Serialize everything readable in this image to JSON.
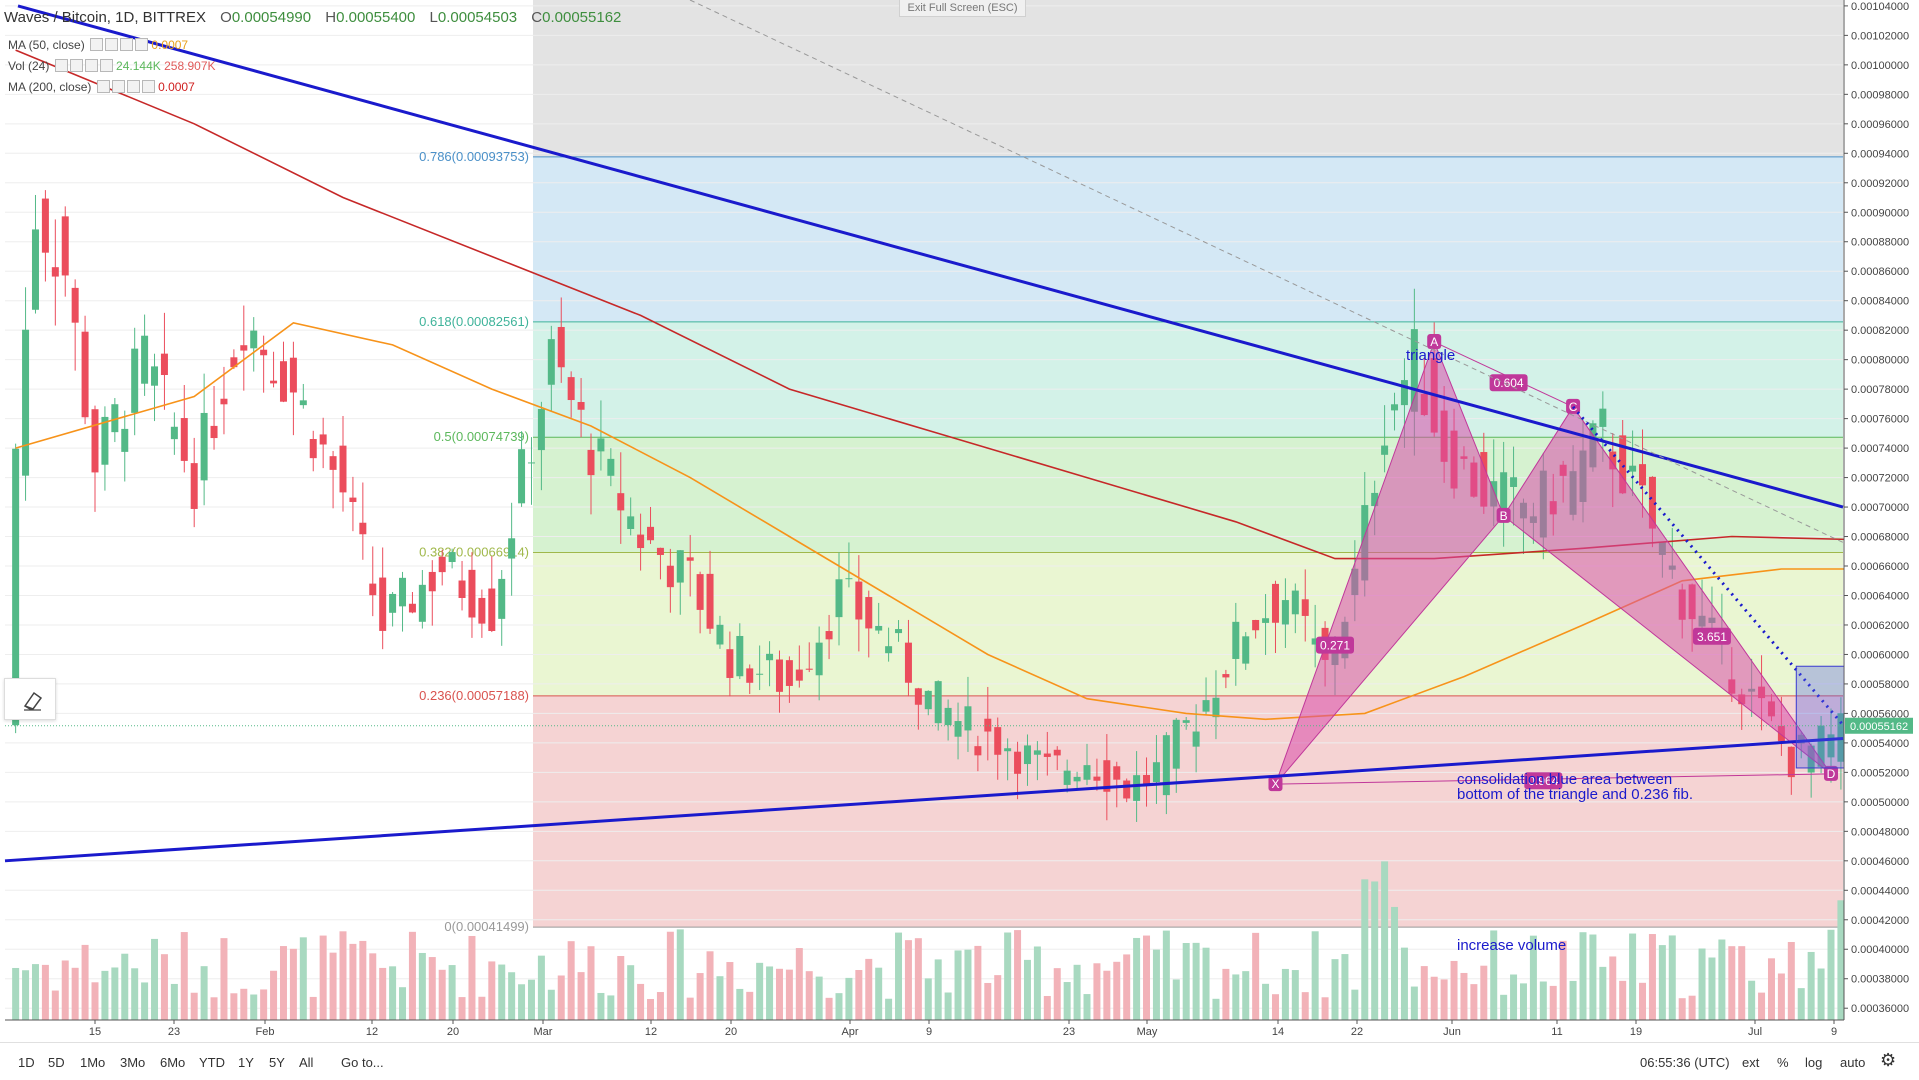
{
  "header": {
    "symbol": "Waves / Bitcoin, 1D, BITTREX",
    "open_label": "O",
    "open": "0.00054990",
    "high_label": "H",
    "high": "0.00055400",
    "low_label": "L",
    "low": "0.00054503",
    "close_label": "C",
    "close": "0.00055162"
  },
  "indicators": [
    {
      "label": "MA (50, close)",
      "value": "0.0007",
      "color": "#e8a01c"
    },
    {
      "label": "Vol (24)",
      "value": "24.144K",
      "value2": "258.907K",
      "color": "#5cb85c"
    },
    {
      "label": "MA (200, close)",
      "value": "0.0007",
      "color": "#d02020"
    }
  ],
  "exit_fullscreen": "Exit Full Screen (ESC)",
  "bottom": {
    "ranges": [
      "1D",
      "5D",
      "1Mo",
      "3Mo",
      "6Mo",
      "YTD",
      "1Y",
      "5Y",
      "All"
    ],
    "goto": "Go to...",
    "time": "06:55:36 (UTC)",
    "ext": "ext",
    "percent": "%",
    "log": "log",
    "auto": "auto"
  },
  "chart_data": {
    "type": "candlestick",
    "title": "Waves / Bitcoin, 1D, BITTREX",
    "colors": {
      "up": "#53b987",
      "down": "#eb4d5c",
      "ma50": "#f7931a",
      "ma200": "#c62828",
      "trend": "#1a1acc"
    },
    "ylim": [
      0.000352,
      0.001044
    ],
    "y_ticks": [
      "0.00104000",
      "0.00102000",
      "0.00100000",
      "0.00098000",
      "0.00096000",
      "0.00094000",
      "0.00092000",
      "0.00090000",
      "0.00088000",
      "0.00086000",
      "0.00084000",
      "0.00082000",
      "0.00080000",
      "0.00078000",
      "0.00076000",
      "0.00074000",
      "0.00072000",
      "0.00070000",
      "0.00068000",
      "0.00066000",
      "0.00064000",
      "0.00062000",
      "0.00060000",
      "0.00058000",
      "0.00056000",
      "0.00054000",
      "0.00052000",
      "0.00050000",
      "0.00048000",
      "0.00046000",
      "0.00044000",
      "0.00042000",
      "0.00040000",
      "0.00038000",
      "0.00036000"
    ],
    "last_price_label": "0.00055162",
    "x_labels": [
      "15",
      "23",
      "Feb",
      "12",
      "20",
      "Mar",
      "12",
      "20",
      "Apr",
      "9",
      "23",
      "May",
      "14",
      "22",
      "Jun",
      "11",
      "19",
      "Jul",
      "9"
    ],
    "fib_levels": [
      {
        "label": "0.786(0.00093753)",
        "value": 0.00093753
      },
      {
        "label": "0.618(0.00082561)",
        "value": 0.00082561
      },
      {
        "label": "0.5(0.00074739)",
        "value": 0.00074739
      },
      {
        "label": "0.382(0.00066914)",
        "value": 0.00066914
      },
      {
        "label": "0.236(0.00057188)",
        "value": 0.00057188
      },
      {
        "label": "0(0.00041499)",
        "value": 0.00041499
      }
    ],
    "pattern_points": {
      "X": "X",
      "A": "A",
      "B": "B",
      "C": "C",
      "D": "D"
    },
    "ratios": [
      "0.604",
      "0.271",
      "3.651",
      "0.964"
    ],
    "annotations": {
      "triangle": "triangle",
      "consolidation_1": "consolidation blue area between",
      "consolidation_2": "bottom of the triangle and 0.236 fib.",
      "volume": "increase volume"
    }
  }
}
